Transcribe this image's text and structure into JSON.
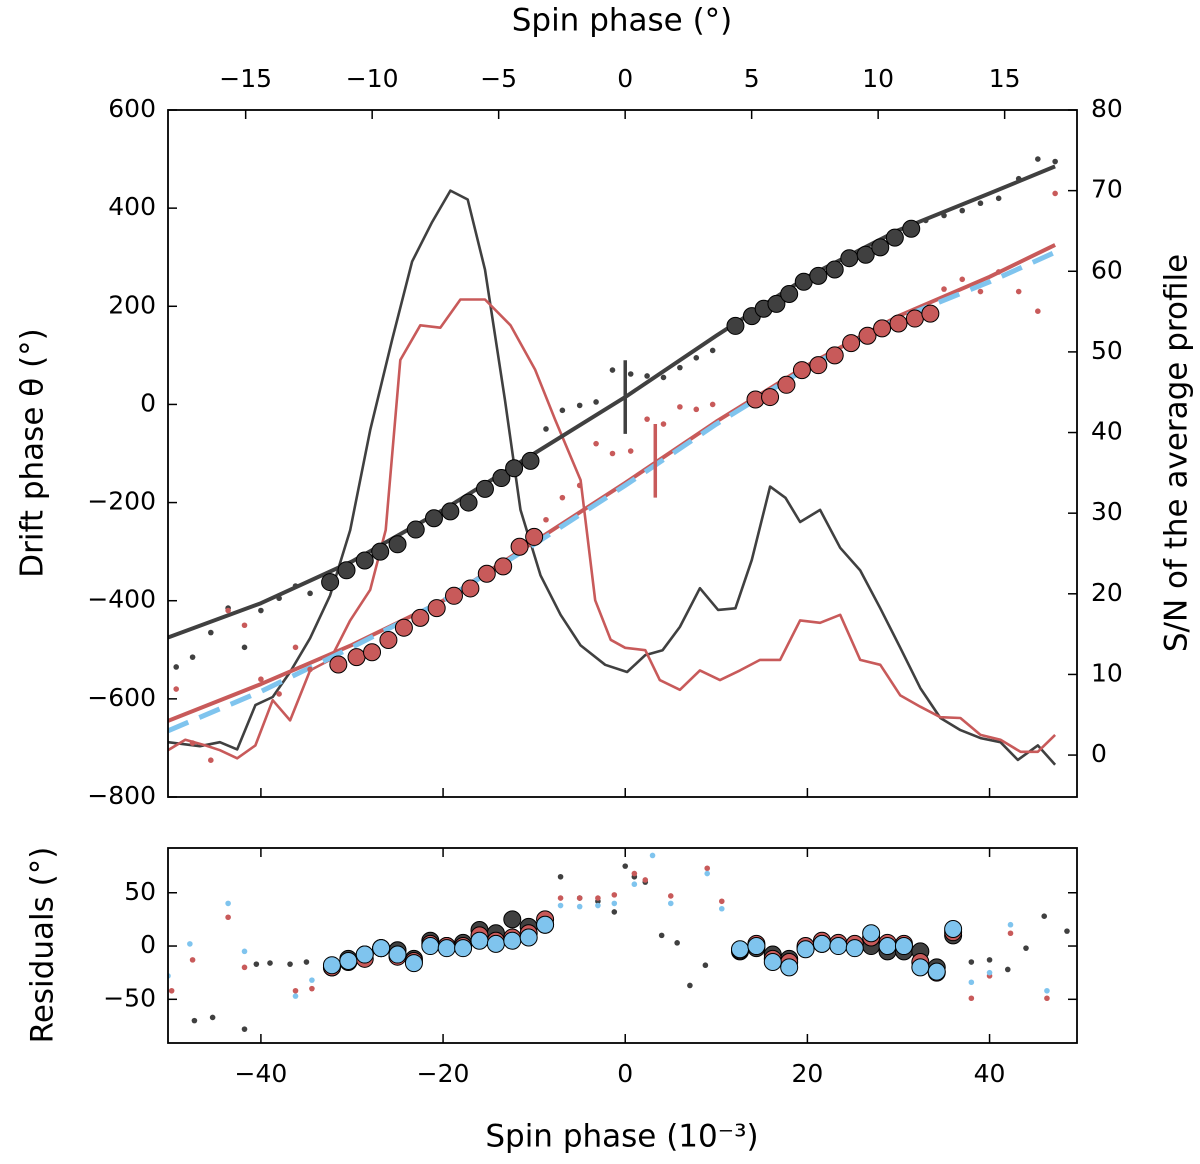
{
  "chart_data": [
    {
      "type": "line",
      "title": "Spin phase (°)",
      "y_label": "Drift phase θ (°)",
      "y2_label": "S/N of the average profile",
      "xlim": [
        -50.2,
        49.6
      ],
      "xticks": [
        {
          "value": -40,
          "label": "−40"
        },
        {
          "value": -20,
          "label": "−20"
        },
        0,
        20,
        40
      ],
      "x2lim": [
        -18.07,
        17.86
      ],
      "x2ticks": [
        {
          "value": -15,
          "label": "−15"
        },
        {
          "value": -10,
          "label": "−10"
        },
        {
          "value": -5,
          "label": "−5"
        },
        0,
        5,
        10,
        15
      ],
      "ylim": [
        -800,
        600
      ],
      "yticks": [
        {
          "value": -800,
          "label": "−800"
        },
        {
          "value": -600,
          "label": "−600"
        },
        {
          "value": -400,
          "label": "−400"
        },
        {
          "value": -200,
          "label": "−200"
        },
        0,
        200,
        400,
        600
      ],
      "y2lim": [
        -5.2,
        80
      ],
      "y2ticks": [
        0,
        10,
        20,
        30,
        40,
        50,
        60,
        70,
        80
      ],
      "series": [
        {
          "mode": "line",
          "axis": "y2",
          "color": "#404040",
          "x": [
            -50.2,
            -46.7,
            -44.5,
            -42.6,
            -40.6,
            -38.7,
            -36.8,
            -34.6,
            -32.4,
            -30.2,
            -28.0,
            -25.6,
            -23.4,
            -21.2,
            -19.2,
            -17.3,
            -15.4,
            -13.2,
            -11.5,
            -9.3,
            -7.1,
            -4.9,
            -2.2,
            0.2,
            2.2,
            4.1,
            6.0,
            8.2,
            10.2,
            12.1,
            13.9,
            15.9,
            17.6,
            19.2,
            21.4,
            23.6,
            25.8,
            28.0,
            30.2,
            32.4,
            34.6,
            36.8,
            39.0,
            41.2,
            43.1,
            45.3,
            47.2
          ],
          "values": [
            1.6,
            1.1,
            1.6,
            0.7,
            6.2,
            7.2,
            10.3,
            14.5,
            19.8,
            27.9,
            40.3,
            51.5,
            61.2,
            66.1,
            70.0,
            68.9,
            60.2,
            44.0,
            30.4,
            22.3,
            17.4,
            13.6,
            11.2,
            10.3,
            12.4,
            13.0,
            15.9,
            20.7,
            18.0,
            18.2,
            24.2,
            33.3,
            31.9,
            28.9,
            30.4,
            25.7,
            22.9,
            18.2,
            13.3,
            8.3,
            4.6,
            3.1,
            2.1,
            1.6,
            -0.6,
            1.2,
            -1.2
          ]
        },
        {
          "mode": "line",
          "axis": "y2",
          "color": "#c85a5a",
          "x": [
            -50.2,
            -48.3,
            -46.1,
            -44.5,
            -42.6,
            -40.6,
            -38.7,
            -36.8,
            -34.6,
            -32.4,
            -30.2,
            -28.0,
            -26.3,
            -24.7,
            -22.5,
            -20.3,
            -18.1,
            -15.4,
            -12.6,
            -9.9,
            -7.7,
            -4.9,
            -3.3,
            -1.6,
            0,
            2.2,
            3.8,
            6.0,
            8.2,
            10.4,
            12.6,
            14.8,
            17.0,
            19.2,
            21.4,
            23.6,
            25.8,
            28.0,
            30.2,
            32.4,
            34.6,
            36.8,
            39.0,
            41.2,
            43.4,
            45.3,
            47.2
          ],
          "values": [
            0.6,
            1.9,
            1.2,
            0.6,
            -0.4,
            1.2,
            6.8,
            4.3,
            10.5,
            11.8,
            16.7,
            20.5,
            27.9,
            49.0,
            53.3,
            53.0,
            56.5,
            56.5,
            53.3,
            47.8,
            41.6,
            34.1,
            19.2,
            14.3,
            13.3,
            13.0,
            9.3,
            8.1,
            10.5,
            9.3,
            10.5,
            11.8,
            11.8,
            16.7,
            16.4,
            17.4,
            11.8,
            11.2,
            7.4,
            6.0,
            4.7,
            4.6,
            2.5,
            1.9,
            0.4,
            0.4,
            2.5
          ]
        },
        {
          "mode": "line",
          "color": "#404040",
          "x": [
            -50.2,
            -40,
            -30,
            -20,
            -10,
            0,
            10,
            20,
            30,
            40,
            47.2
          ],
          "values": [
            -475,
            -405,
            -320,
            -215,
            -100,
            15,
            140,
            260,
            355,
            430,
            485
          ]
        },
        {
          "mode": "line",
          "color": "#c85a5a",
          "x": [
            -50.2,
            -40,
            -30,
            -20,
            -10,
            0,
            10,
            20,
            30,
            40,
            47.2
          ],
          "values": [
            -645,
            -570,
            -490,
            -400,
            -280,
            -160,
            -35,
            80,
            180,
            260,
            325
          ]
        },
        {
          "mode": "line",
          "dashed": true,
          "color": "#7fc4ee",
          "x": [
            -50.2,
            -40,
            -30,
            -20,
            -10,
            0,
            10,
            20,
            30,
            40,
            47.2
          ],
          "values": [
            -665,
            -585,
            -495,
            -400,
            -285,
            -165,
            -40,
            75,
            175,
            250,
            310
          ]
        },
        {
          "mode": "errorbar",
          "color": "#404040",
          "x": [
            0
          ],
          "values": [
            15
          ],
          "errors": [
            75
          ]
        },
        {
          "mode": "errorbar",
          "color": "#c85a5a",
          "x": [
            3.3
          ],
          "values": [
            -115
          ],
          "errors": [
            75
          ]
        },
        {
          "mode": "dots",
          "marker": "small",
          "color": "#404040",
          "x": [
            -49.3,
            -47.5,
            -45.5,
            -43.6,
            -41.8,
            -40.0,
            -38.0,
            -36.2,
            -34.6,
            -8.7,
            -6.9,
            -5.0,
            -3.2,
            -1.4,
            0.6,
            2.4,
            4.2,
            6.0,
            7.8,
            9.6,
            33.0,
            35.0,
            37.0,
            39.0,
            41.0,
            43.2,
            45.3,
            47.2
          ],
          "values": [
            -535,
            -515,
            -465,
            -415,
            -495,
            -420,
            -395,
            -370,
            -385,
            -50,
            -12,
            -2,
            5,
            70,
            62,
            58,
            55,
            75,
            95,
            110,
            375,
            385,
            395,
            410,
            420,
            460,
            500,
            495
          ]
        },
        {
          "mode": "dots",
          "marker": "small",
          "color": "#c85a5a",
          "x": [
            -49.3,
            -47.5,
            -45.5,
            -43.6,
            -41.8,
            -40.0,
            -38.0,
            -36.2,
            -34.6,
            -8.7,
            -6.9,
            -5.0,
            -3.2,
            -1.4,
            0.6,
            2.4,
            4.2,
            6.0,
            7.8,
            9.6,
            35.0,
            37.0,
            39.0,
            41.0,
            43.2,
            45.3,
            47.2
          ],
          "values": [
            -580,
            -690,
            -725,
            -420,
            -450,
            -560,
            -590,
            -495,
            -540,
            -235,
            -190,
            -165,
            -80,
            -100,
            -95,
            -30,
            -40,
            -5,
            -10,
            0,
            235,
            255,
            230,
            270,
            230,
            190,
            430
          ]
        },
        {
          "mode": "dots",
          "marker": "large",
          "color": "#404040",
          "x": [
            -32.4,
            -30.6,
            -28.6,
            -26.9,
            -25.0,
            -23.0,
            -21.0,
            -19.2,
            -17.2,
            -15.4,
            -13.6,
            -12.2,
            -10.4,
            12.1,
            13.9,
            15.2,
            16.6,
            18.0,
            19.6,
            21.2,
            23.0,
            24.6,
            26.4,
            28.0,
            29.6,
            31.4
          ],
          "values": [
            -362,
            -338,
            -318,
            -300,
            -285,
            -255,
            -232,
            -218,
            -200,
            -172,
            -150,
            -130,
            -115,
            160,
            180,
            195,
            205,
            225,
            250,
            262,
            275,
            298,
            305,
            320,
            340,
            358
          ]
        },
        {
          "mode": "dots",
          "marker": "large",
          "color": "#c85a5a",
          "x": [
            -31.5,
            -29.5,
            -27.8,
            -26.0,
            -24.3,
            -22.5,
            -20.7,
            -18.8,
            -17.0,
            -15.2,
            -13.4,
            -11.6,
            -10.0,
            14.3,
            15.9,
            17.7,
            19.4,
            21.2,
            23.0,
            24.8,
            26.6,
            28.2,
            30.0,
            31.8,
            33.5
          ],
          "values": [
            -530,
            -515,
            -505,
            -480,
            -455,
            -435,
            -415,
            -390,
            -375,
            -345,
            -330,
            -290,
            -270,
            10,
            15,
            40,
            70,
            80,
            100,
            125,
            140,
            155,
            165,
            175,
            185
          ]
        }
      ]
    },
    {
      "type": "scatter",
      "x_label": "Spin phase (10⁻³)",
      "y_label": "Residuals (°)",
      "xlim": [
        -50.2,
        49.6
      ],
      "xticks": [
        {
          "value": -40,
          "label": "−40"
        },
        {
          "value": -20,
          "label": "−20"
        },
        0,
        20,
        40
      ],
      "ylim": [
        -91,
        92
      ],
      "yticks": [
        {
          "value": -50,
          "label": "−50"
        },
        0,
        50
      ],
      "series": [
        {
          "mode": "dots",
          "marker": "small",
          "color": "#404040",
          "x": [
            -47.3,
            -45.3,
            -41.8,
            -40.5,
            -39.0,
            -36.8,
            -35.0,
            -7.1,
            -5.0,
            -3.0,
            -1.2,
            0,
            1.0,
            2.2,
            4.0,
            5.7,
            7.1,
            8.8,
            38.0,
            40.0,
            42.0,
            44.0,
            46.0,
            48.5
          ],
          "values": [
            -70,
            -67,
            -78,
            -17,
            -16,
            -17,
            -15,
            65,
            45,
            42,
            32,
            75,
            65,
            60,
            10,
            3,
            -37,
            -18,
            -15,
            -13,
            -22,
            -2,
            28,
            14
          ]
        },
        {
          "mode": "dots",
          "marker": "small",
          "color": "#c85a5a",
          "x": [
            -49.8,
            -47.5,
            -43.6,
            -41.8,
            -36.2,
            -34.4,
            -7.1,
            -5.0,
            -3.0,
            -1.2,
            1.0,
            2.2,
            5.0,
            9.0,
            10.6,
            38.0,
            40.0,
            42.3,
            46.3
          ],
          "values": [
            -42,
            -13,
            27,
            -20,
            -42,
            -40,
            45,
            45,
            45,
            48,
            68,
            62,
            47,
            73,
            42,
            -49,
            -28,
            12,
            -49
          ]
        },
        {
          "mode": "dots",
          "marker": "small",
          "color": "#7fc4ee",
          "x": [
            -50.2,
            -47.8,
            -43.6,
            -41.8,
            -36.2,
            -34.4,
            -7.1,
            -5.0,
            -3.0,
            -1.2,
            1.0,
            3.0,
            5.0,
            9.0,
            10.6,
            38.0,
            40.0,
            42.3,
            46.3
          ],
          "values": [
            -28,
            2,
            40,
            -5,
            -47,
            -32,
            38,
            37,
            38,
            40,
            58,
            85,
            40,
            68,
            35,
            -34,
            -25,
            20,
            -42
          ]
        },
        {
          "mode": "dots",
          "marker": "large",
          "color": "#404040",
          "x": [
            -32.2,
            -30.4,
            -28.6,
            -26.8,
            -25.0,
            -23.2,
            -21.4,
            -19.6,
            -17.8,
            -16.0,
            -14.2,
            -12.4,
            -10.6,
            -8.8,
            12.6,
            14.4,
            16.2,
            18.0,
            19.8,
            21.6,
            23.4,
            25.2,
            27.0,
            28.8,
            30.6,
            32.4,
            34.2,
            36.0
          ],
          "values": [
            -20,
            -12,
            -8,
            -2,
            -4,
            -12,
            5,
            0,
            3,
            15,
            12,
            25,
            18,
            20,
            -5,
            -2,
            -8,
            -12,
            -2,
            2,
            2,
            0,
            0,
            -5,
            -5,
            -5,
            -20,
            10
          ]
        },
        {
          "mode": "dots",
          "marker": "large",
          "color": "#c85a5a",
          "x": [
            -32.2,
            -30.4,
            -28.6,
            -26.8,
            -25.0,
            -23.2,
            -21.4,
            -19.6,
            -17.8,
            -16.0,
            -14.2,
            -12.4,
            -10.6,
            -8.8,
            12.6,
            14.4,
            16.2,
            18.0,
            19.8,
            21.6,
            23.4,
            25.2,
            27.0,
            28.8,
            30.6,
            32.4,
            34.2,
            36.0
          ],
          "values": [
            -20,
            -15,
            -12,
            -2,
            -10,
            -14,
            2,
            0,
            0,
            10,
            5,
            8,
            12,
            25,
            -4,
            2,
            -12,
            -15,
            0,
            5,
            3,
            2,
            8,
            3,
            2,
            -15,
            -25,
            13
          ]
        },
        {
          "mode": "dots",
          "marker": "large",
          "color": "#7fc4ee",
          "x": [
            -32.2,
            -30.4,
            -28.6,
            -26.8,
            -25.0,
            -23.2,
            -21.4,
            -19.6,
            -17.8,
            -16.0,
            -14.2,
            -12.4,
            -10.6,
            -8.8,
            12.6,
            14.4,
            16.2,
            18.0,
            19.8,
            21.6,
            23.4,
            25.2,
            27.0,
            28.8,
            30.6,
            32.4,
            34.2,
            36.0
          ],
          "values": [
            -18,
            -14,
            -8,
            -2,
            -8,
            -16,
            0,
            -2,
            -2,
            5,
            2,
            5,
            8,
            20,
            -3,
            0,
            -15,
            -20,
            -3,
            2,
            0,
            -2,
            12,
            0,
            0,
            -20,
            -24,
            16
          ]
        }
      ]
    }
  ]
}
